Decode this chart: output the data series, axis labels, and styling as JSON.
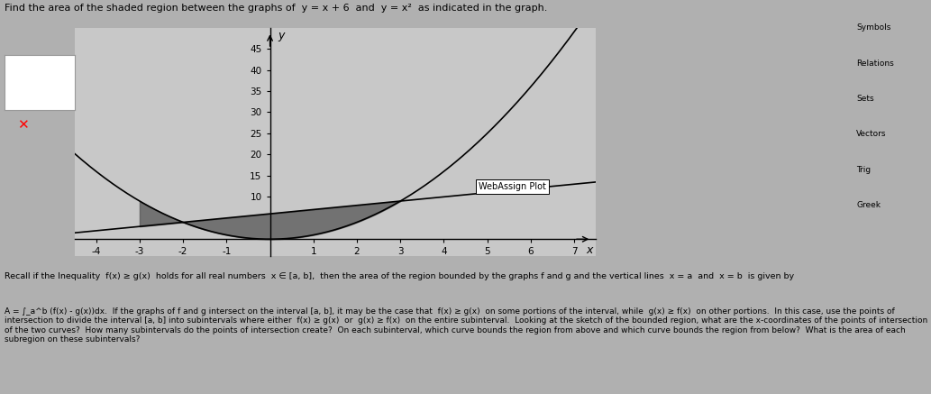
{
  "title": "Find the area of the shaded region between the graphs of  y = x + 6  and  y = x²  as indicated in the graph.",
  "x_min": -4.5,
  "x_max": 7.5,
  "y_min": -4,
  "y_max": 50,
  "x_ticks": [
    -4,
    -3,
    -2,
    -1,
    1,
    2,
    3,
    4,
    5,
    6,
    7
  ],
  "y_ticks": [
    10,
    15,
    20,
    25,
    30,
    35,
    40,
    45
  ],
  "shade_color": "#555555",
  "shade_alpha": 0.75,
  "line_color": "#000000",
  "fig_bg": "#b0b0b0",
  "plot_bg": "#c8c8c8",
  "right_panel_bg": "#c8c8c8",
  "webassign_label": "WebAssign Plot",
  "body_text_1": "Recall if the Inequality  f(x) ≥ g(x)  holds for all real numbers  x ∈ [a, b],  then the area of the region bounded by the graphs f and g and the vertical lines  x = a  and  x = b  is given by",
  "body_text_2": "A = ∫_a^b (f(x) - g(x))dx.  If the graphs of f and g intersect on the interval [a, b], it may be the case that  f(x) ≥ g(x)  on some portions of the interval, while  g(x) ≥ f(x)  on other portions.  In this case, use the points of intersection to divide the interval [a, b] into subintervals where either  f(x) ≥ g(x)  or  g(x) ≥ f(x)  on the entire subinterval.  Looking at the sketch of the bounded region, what are the x-coordinates of the points of intersection of the two curves?  How many subintervals do the points of intersection create?  On each subinterval, which curve bounds the region from above and which curve bounds the region from below?  What is the area of each subregion on these subintervals?"
}
